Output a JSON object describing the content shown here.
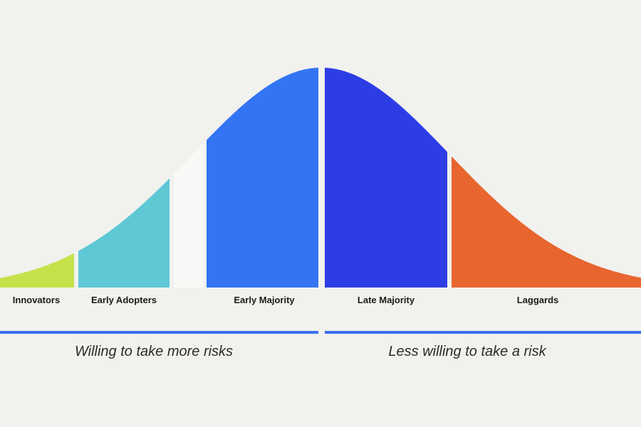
{
  "diagram": {
    "segments": [
      {
        "id": "innovators",
        "label": "Innovators",
        "color": "#c6e24a"
      },
      {
        "id": "early-adopters",
        "label": "Early Adopters",
        "color": "#5ec8d5"
      },
      {
        "id": "gap",
        "label": "",
        "color": "#f8f8f6"
      },
      {
        "id": "early-majority",
        "label": "Early Majority",
        "color": "#3274f4"
      },
      {
        "id": "late-majority",
        "label": "Late Majority",
        "color": "#2d3de6"
      },
      {
        "id": "laggards",
        "label": "Laggards",
        "color": "#e8652f"
      }
    ],
    "risk_left": {
      "text": "Willing to take more risks",
      "color": "#3b6ff0"
    },
    "risk_right": {
      "text": "Less willing to take a risk",
      "color": "#3b6ff0"
    }
  }
}
